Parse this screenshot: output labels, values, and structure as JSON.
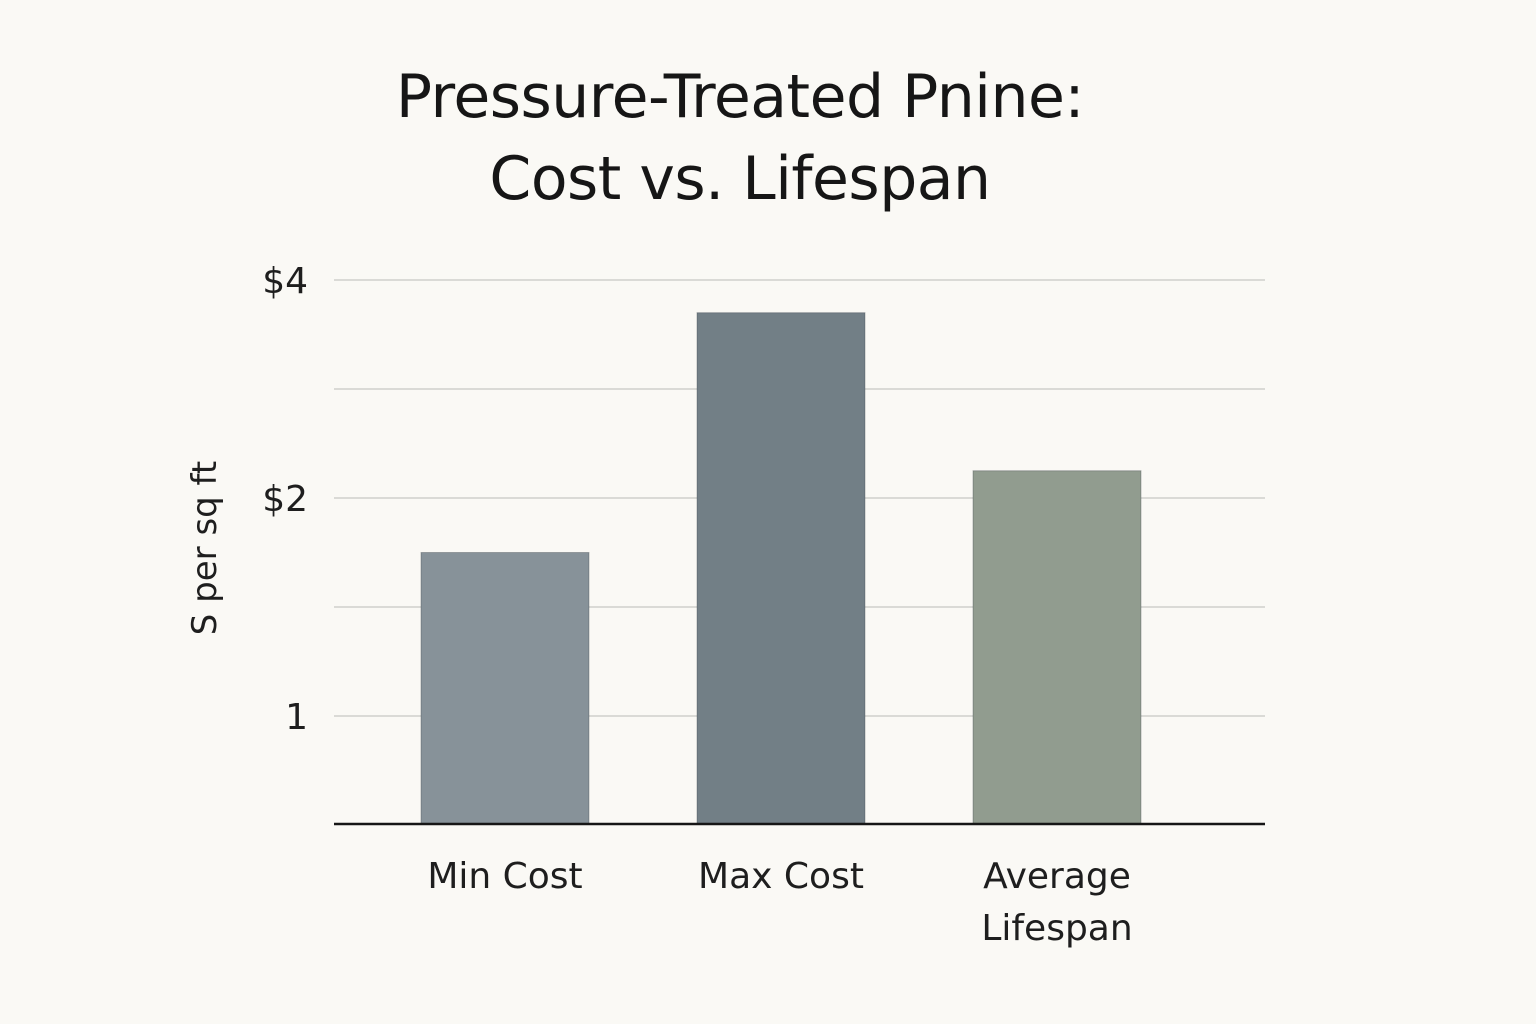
{
  "chart_data": {
    "type": "bar",
    "title": [
      "Pressure-Treated Pnine:",
      "Cost vs. Lifespan"
    ],
    "xlabel": "",
    "ylabel": "S per sq ft",
    "y_ticks": [
      {
        "value": 1,
        "label": "1"
      },
      {
        "value": 2,
        "label": "$2"
      },
      {
        "value": 4,
        "label": "$4"
      }
    ],
    "gridlines": [
      0.5,
      1,
      1.5,
      2,
      3,
      4
    ],
    "ylim": [
      0,
      4
    ],
    "grid": true,
    "categories": [
      {
        "lines": [
          "Min Cost"
        ]
      },
      {
        "lines": [
          "Max Cost"
        ]
      },
      {
        "lines": [
          "Average",
          "Lifespan"
        ]
      }
    ],
    "values": [
      1.75,
      3.7,
      2.25
    ],
    "colors": [
      "#879299",
      "#727f86",
      "#919c8f"
    ]
  }
}
